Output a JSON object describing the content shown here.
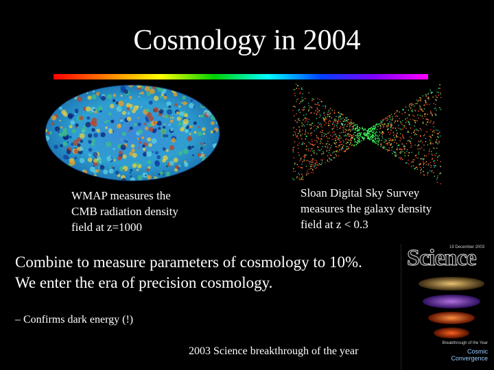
{
  "title": "Cosmology in 2004",
  "wmap": {
    "caption_lines": [
      "WMAP measures the",
      "CMB  radiation density",
      "field at z=1000"
    ]
  },
  "sdss": {
    "caption_lines": [
      "Sloan Digital Sky Survey",
      "measures the galaxy density",
      "field at z < 0.3"
    ]
  },
  "body": {
    "line1": "Combine to measure parameters of cosmology  to 10%.",
    "line2": "We enter the era of precision cosmology.",
    "bullet": "– Confirms dark energy (!)",
    "footer": "2003 Science  breakthrough of the year"
  },
  "cover": {
    "masthead": "Science",
    "date": "19 December 2003",
    "kicker": "Breakthrough of the Year",
    "headline_1": "Cosmic",
    "headline_2": "Convergence"
  },
  "colors": {
    "background": "#000000",
    "text": "#ffffff"
  }
}
